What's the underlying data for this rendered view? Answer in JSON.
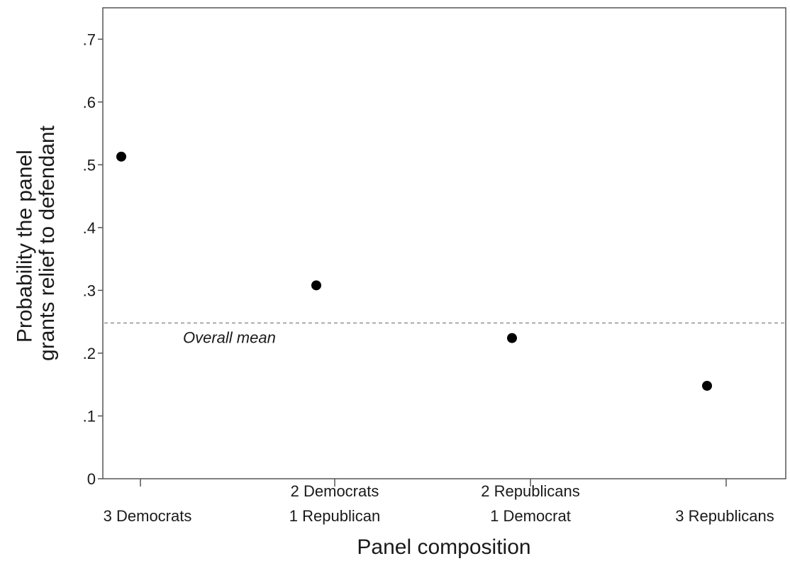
{
  "chart_data": {
    "type": "scatter",
    "title": "",
    "xlabel": "Panel composition",
    "ylabel_lines": [
      "Probability the panel",
      "grants relief to defendant"
    ],
    "categories": [
      [
        "3 Democrats"
      ],
      [
        "2 Democrats",
        "1 Republican"
      ],
      [
        "2 Republicans",
        "1 Democrat"
      ],
      [
        "3 Republicans"
      ]
    ],
    "series": [
      {
        "values": [
          0.513,
          0.308,
          0.224,
          0.148
        ]
      }
    ],
    "ylim": [
      0,
      0.75
    ],
    "yticks": [
      0,
      0.1,
      0.2,
      0.3,
      0.4,
      0.5,
      0.6,
      0.7
    ],
    "ytick_labels": [
      "0",
      ".1",
      ".2",
      ".3",
      ".4",
      ".5",
      ".6",
      ".7"
    ],
    "reference_line": {
      "value": 0.248,
      "label": "Overall mean",
      "style": "dashed"
    },
    "grid": false,
    "legend": "none",
    "colors": {
      "marker": "#000000",
      "axis": "#555555",
      "reference": "#999999"
    }
  }
}
